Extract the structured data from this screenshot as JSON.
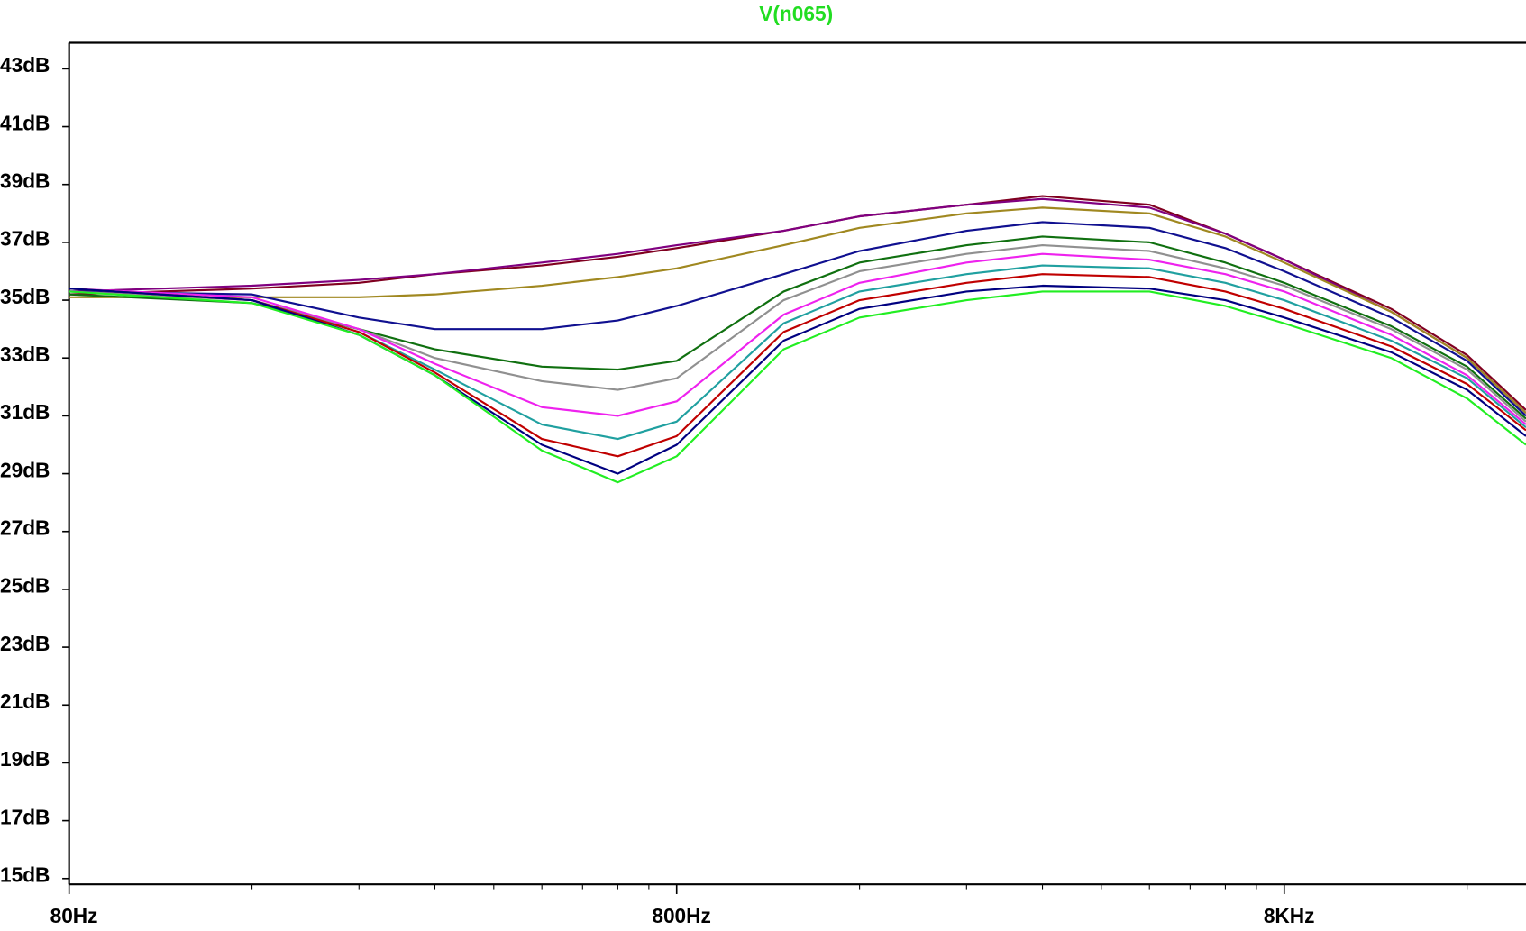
{
  "chart_data": {
    "type": "line",
    "title": "V(n065)",
    "title_color": "#22dd22",
    "log_x": true,
    "xlim": [
      80,
      20000
    ],
    "xticks": [
      {
        "value": 80,
        "label": "80Hz"
      },
      {
        "value": 800,
        "label": "800Hz"
      },
      {
        "value": 8000,
        "label": "8KHz"
      }
    ],
    "x_minor_ticks": [
      160,
      240,
      320,
      400,
      480,
      560,
      640,
      720,
      1600,
      2400,
      3200,
      4000,
      4800,
      5600,
      6400,
      7200,
      16000
    ],
    "ylim": [
      14.8,
      43.9
    ],
    "yticks": [
      {
        "value": 15,
        "label": "15dB"
      },
      {
        "value": 17,
        "label": "17dB"
      },
      {
        "value": 19,
        "label": "19dB"
      },
      {
        "value": 21,
        "label": "21dB"
      },
      {
        "value": 23,
        "label": "23dB"
      },
      {
        "value": 25,
        "label": "25dB"
      },
      {
        "value": 27,
        "label": "27dB"
      },
      {
        "value": 29,
        "label": "29dB"
      },
      {
        "value": 31,
        "label": "31dB"
      },
      {
        "value": 33,
        "label": "33dB"
      },
      {
        "value": 35,
        "label": "35dB"
      },
      {
        "value": 37,
        "label": "37dB"
      },
      {
        "value": 39,
        "label": "39dB"
      },
      {
        "value": 41,
        "label": "41dB"
      },
      {
        "value": 43,
        "label": "43dB"
      }
    ],
    "x": [
      80,
      160,
      240,
      320,
      480,
      640,
      800,
      1200,
      1600,
      2400,
      3200,
      4800,
      6400,
      8000,
      12000,
      16000,
      20000
    ],
    "series": [
      {
        "color": "#22ee22",
        "values": [
          35.3,
          34.9,
          33.8,
          32.4,
          29.8,
          28.7,
          29.6,
          33.3,
          34.4,
          35.0,
          35.3,
          35.3,
          34.8,
          34.2,
          33.0,
          31.6,
          30.0
        ]
      },
      {
        "color": "#000080",
        "values": [
          35.4,
          35.0,
          33.8,
          32.4,
          30.0,
          29.0,
          30.0,
          33.6,
          34.7,
          35.3,
          35.5,
          35.4,
          35.0,
          34.4,
          33.2,
          31.9,
          30.3
        ]
      },
      {
        "color": "#c00000",
        "values": [
          35.4,
          35.0,
          33.9,
          32.5,
          30.2,
          29.6,
          30.3,
          33.9,
          35.0,
          35.6,
          35.9,
          35.8,
          35.3,
          34.7,
          33.4,
          32.1,
          30.5
        ]
      },
      {
        "color": "#20a0a0",
        "values": [
          35.4,
          35.0,
          33.9,
          32.6,
          30.7,
          30.2,
          30.8,
          34.2,
          35.3,
          35.9,
          36.2,
          36.1,
          35.6,
          35.0,
          33.6,
          32.3,
          30.6
        ]
      },
      {
        "color": "#ee22ee",
        "values": [
          35.4,
          35.1,
          34.0,
          32.8,
          31.3,
          31.0,
          31.5,
          34.5,
          35.6,
          36.3,
          36.6,
          36.4,
          35.9,
          35.3,
          33.8,
          32.4,
          30.7
        ]
      },
      {
        "color": "#909090",
        "values": [
          35.3,
          35.0,
          34.0,
          33.0,
          32.2,
          31.9,
          32.3,
          35.0,
          36.0,
          36.6,
          36.9,
          36.7,
          36.1,
          35.5,
          34.0,
          32.6,
          30.8
        ]
      },
      {
        "color": "#107010",
        "values": [
          35.2,
          34.9,
          34.0,
          33.3,
          32.7,
          32.6,
          32.9,
          35.3,
          36.3,
          36.9,
          37.2,
          37.0,
          36.3,
          35.6,
          34.1,
          32.7,
          30.9
        ]
      },
      {
        "color": "#101090",
        "values": [
          35.3,
          35.2,
          34.4,
          34.0,
          34.0,
          34.3,
          34.8,
          35.9,
          36.7,
          37.4,
          37.7,
          37.5,
          36.8,
          36.0,
          34.4,
          32.9,
          31.0
        ]
      },
      {
        "color": "#a08820",
        "values": [
          35.1,
          35.1,
          35.1,
          35.2,
          35.5,
          35.8,
          36.1,
          36.9,
          37.5,
          38.0,
          38.2,
          38.0,
          37.2,
          36.3,
          34.6,
          33.0,
          31.1
        ]
      },
      {
        "color": "#800080",
        "values": [
          35.3,
          35.5,
          35.7,
          35.9,
          36.3,
          36.6,
          36.9,
          37.4,
          37.9,
          38.3,
          38.5,
          38.2,
          37.3,
          36.4,
          34.6,
          33.0,
          31.1
        ]
      },
      {
        "color": "#800020",
        "values": [
          35.2,
          35.4,
          35.6,
          35.9,
          36.2,
          36.5,
          36.8,
          37.4,
          37.9,
          38.3,
          38.6,
          38.3,
          37.3,
          36.4,
          34.7,
          33.1,
          31.2
        ]
      }
    ]
  }
}
